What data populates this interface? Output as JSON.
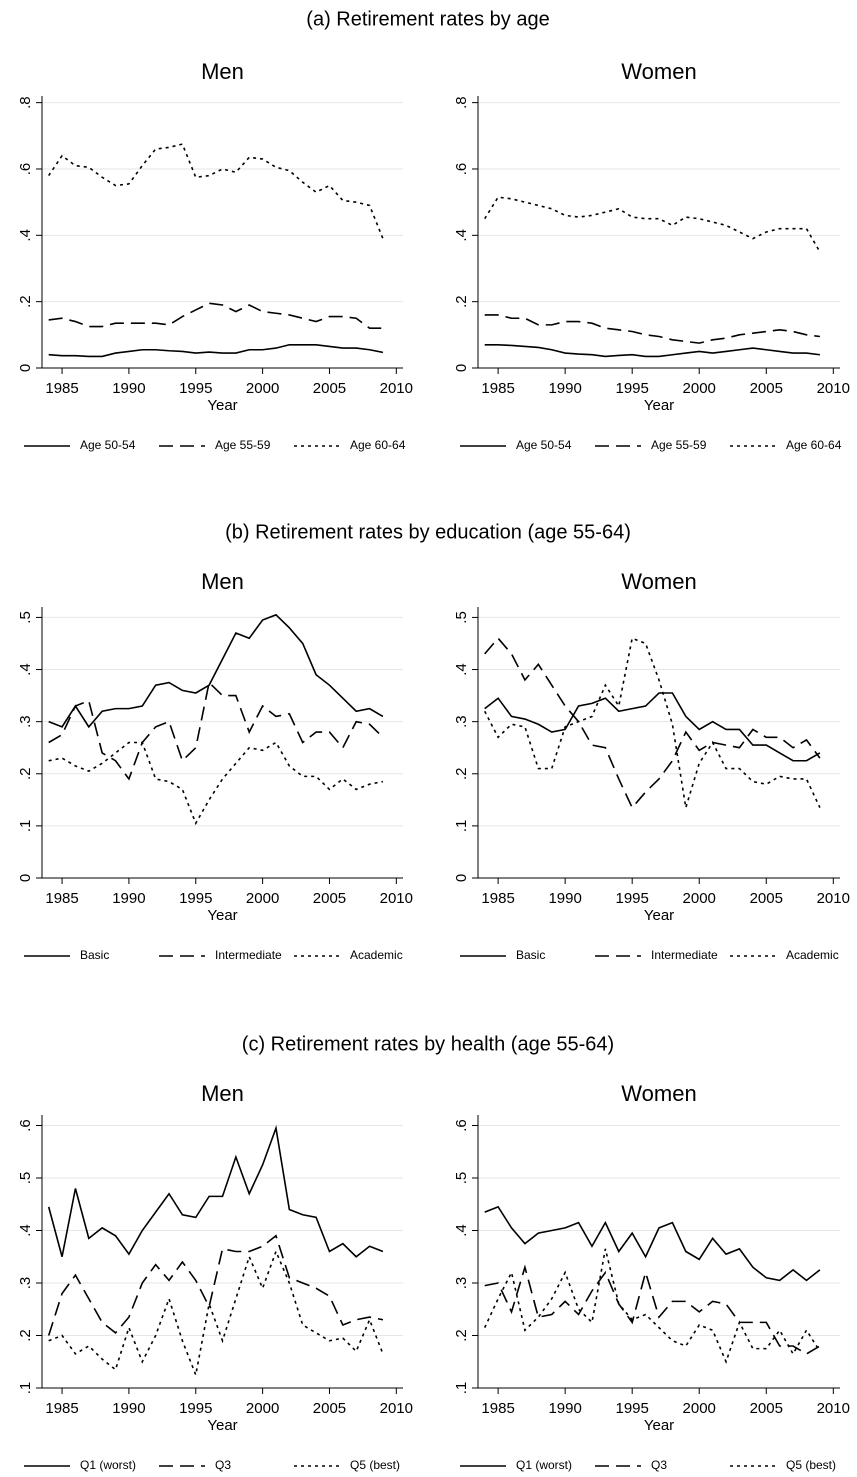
{
  "section_titles": [
    "(a) Retirement rates by age",
    "(b) Retirement rates by education (age 55-64)",
    "(c) Retirement rates by health (age 55-64)"
  ],
  "chart_data": [
    {
      "type": "line",
      "title": "Men",
      "xlabel": "Year",
      "grid": true,
      "x": [
        1984,
        1985,
        1986,
        1987,
        1988,
        1989,
        1990,
        1991,
        1992,
        1993,
        1994,
        1995,
        1996,
        1997,
        1998,
        1999,
        2000,
        2001,
        2002,
        2003,
        2004,
        2005,
        2006,
        2007,
        2008,
        2009
      ],
      "xlim": [
        1983.5,
        2010.5
      ],
      "xticks": [
        1985,
        1990,
        1995,
        2000,
        2005,
        2010
      ],
      "ylim": [
        0,
        0.82
      ],
      "yticks": [
        0,
        {
          "value": 0.2,
          "label": ".2"
        },
        {
          "value": 0.4,
          "label": ".4"
        },
        {
          "value": 0.6,
          "label": ".6"
        },
        {
          "value": 0.8,
          "label": ".8"
        }
      ],
      "series": [
        {
          "name": "Age 50-54",
          "color": "#000000",
          "style": "solid",
          "values": [
            0.04,
            0.037,
            0.037,
            0.035,
            0.035,
            0.045,
            0.05,
            0.055,
            0.055,
            0.052,
            0.05,
            0.045,
            0.048,
            0.045,
            0.045,
            0.055,
            0.055,
            0.06,
            0.07,
            0.07,
            0.07,
            0.065,
            0.06,
            0.06,
            0.055,
            0.047
          ]
        },
        {
          "name": "Age 55-59",
          "color": "#000000",
          "style": "dash",
          "values": [
            0.145,
            0.15,
            0.14,
            0.125,
            0.125,
            0.135,
            0.135,
            0.135,
            0.135,
            0.13,
            0.155,
            0.175,
            0.195,
            0.19,
            0.17,
            0.19,
            0.17,
            0.165,
            0.16,
            0.15,
            0.14,
            0.155,
            0.155,
            0.15,
            0.12,
            0.12
          ]
        },
        {
          "name": "Age 60-64",
          "color": "#000000",
          "style": "dot",
          "values": [
            0.58,
            0.64,
            0.61,
            0.605,
            0.575,
            0.55,
            0.555,
            0.61,
            0.66,
            0.665,
            0.675,
            0.575,
            0.58,
            0.6,
            0.59,
            0.635,
            0.63,
            0.605,
            0.595,
            0.56,
            0.53,
            0.55,
            0.505,
            0.5,
            0.49,
            0.39
          ]
        }
      ]
    },
    {
      "type": "line",
      "title": "Women",
      "xlabel": "Year",
      "grid": true,
      "x": [
        1984,
        1985,
        1986,
        1987,
        1988,
        1989,
        1990,
        1991,
        1992,
        1993,
        1994,
        1995,
        1996,
        1997,
        1998,
        1999,
        2000,
        2001,
        2002,
        2003,
        2004,
        2005,
        2006,
        2007,
        2008,
        2009
      ],
      "xlim": [
        1983.5,
        2010.5
      ],
      "xticks": [
        1985,
        1990,
        1995,
        2000,
        2005,
        2010
      ],
      "ylim": [
        0,
        0.82
      ],
      "yticks": [
        0,
        {
          "value": 0.2,
          "label": ".2"
        },
        {
          "value": 0.4,
          "label": ".4"
        },
        {
          "value": 0.6,
          "label": ".6"
        },
        {
          "value": 0.8,
          "label": ".8"
        }
      ],
      "series": [
        {
          "name": "Age 50-54",
          "color": "#000000",
          "style": "solid",
          "values": [
            0.07,
            0.07,
            0.068,
            0.065,
            0.062,
            0.055,
            0.045,
            0.042,
            0.04,
            0.035,
            0.038,
            0.04,
            0.035,
            0.035,
            0.04,
            0.045,
            0.05,
            0.045,
            0.05,
            0.055,
            0.06,
            0.055,
            0.05,
            0.045,
            0.045,
            0.04
          ]
        },
        {
          "name": "Age 55-59",
          "color": "#000000",
          "style": "dash",
          "values": [
            0.16,
            0.16,
            0.15,
            0.15,
            0.13,
            0.13,
            0.14,
            0.14,
            0.135,
            0.12,
            0.115,
            0.11,
            0.1,
            0.095,
            0.085,
            0.08,
            0.075,
            0.085,
            0.09,
            0.1,
            0.105,
            0.11,
            0.115,
            0.11,
            0.1,
            0.095
          ]
        },
        {
          "name": "Age 60-64",
          "color": "#000000",
          "style": "dot",
          "values": [
            0.45,
            0.515,
            0.51,
            0.5,
            0.49,
            0.48,
            0.46,
            0.455,
            0.46,
            0.47,
            0.48,
            0.455,
            0.45,
            0.45,
            0.43,
            0.455,
            0.45,
            0.44,
            0.43,
            0.41,
            0.39,
            0.41,
            0.42,
            0.42,
            0.42,
            0.35
          ]
        }
      ]
    },
    {
      "type": "line",
      "title": "Men",
      "xlabel": "Year",
      "grid": true,
      "x": [
        1984,
        1985,
        1986,
        1987,
        1988,
        1989,
        1990,
        1991,
        1992,
        1993,
        1994,
        1995,
        1996,
        1997,
        1998,
        1999,
        2000,
        2001,
        2002,
        2003,
        2004,
        2005,
        2006,
        2007,
        2008,
        2009
      ],
      "xlim": [
        1983.5,
        2010.5
      ],
      "xticks": [
        1985,
        1990,
        1995,
        2000,
        2005,
        2010
      ],
      "ylim": [
        0,
        0.52
      ],
      "yticks": [
        0,
        {
          "value": 0.1,
          "label": ".1"
        },
        {
          "value": 0.2,
          "label": ".2"
        },
        {
          "value": 0.3,
          "label": ".3"
        },
        {
          "value": 0.4,
          "label": ".4"
        },
        {
          "value": 0.5,
          "label": ".5"
        }
      ],
      "series": [
        {
          "name": "Basic",
          "color": "#000000",
          "style": "solid",
          "values": [
            0.3,
            0.29,
            0.33,
            0.29,
            0.32,
            0.325,
            0.325,
            0.33,
            0.37,
            0.375,
            0.36,
            0.355,
            0.37,
            0.42,
            0.47,
            0.46,
            0.495,
            0.505,
            0.48,
            0.45,
            0.39,
            0.37,
            0.345,
            0.32,
            0.325,
            0.31
          ]
        },
        {
          "name": "Intermediate",
          "color": "#000000",
          "style": "dash",
          "values": [
            0.26,
            0.275,
            0.33,
            0.34,
            0.24,
            0.225,
            0.19,
            0.26,
            0.29,
            0.3,
            0.225,
            0.25,
            0.375,
            0.35,
            0.35,
            0.28,
            0.33,
            0.31,
            0.315,
            0.26,
            0.28,
            0.28,
            0.25,
            0.3,
            0.295,
            0.27
          ]
        },
        {
          "name": "Academic",
          "color": "#000000",
          "style": "dot",
          "values": [
            0.225,
            0.23,
            0.215,
            0.205,
            0.22,
            0.24,
            0.26,
            0.26,
            0.19,
            0.185,
            0.17,
            0.105,
            0.15,
            0.19,
            0.22,
            0.25,
            0.245,
            0.26,
            0.215,
            0.195,
            0.195,
            0.17,
            0.19,
            0.17,
            0.18,
            0.185
          ]
        }
      ]
    },
    {
      "type": "line",
      "title": "Women",
      "xlabel": "Year",
      "grid": true,
      "x": [
        1984,
        1985,
        1986,
        1987,
        1988,
        1989,
        1990,
        1991,
        1992,
        1993,
        1994,
        1995,
        1996,
        1997,
        1998,
        1999,
        2000,
        2001,
        2002,
        2003,
        2004,
        2005,
        2006,
        2007,
        2008,
        2009
      ],
      "xlim": [
        1983.5,
        2010.5
      ],
      "xticks": [
        1985,
        1990,
        1995,
        2000,
        2005,
        2010
      ],
      "ylim": [
        0,
        0.52
      ],
      "yticks": [
        0,
        {
          "value": 0.1,
          "label": ".1"
        },
        {
          "value": 0.2,
          "label": ".2"
        },
        {
          "value": 0.3,
          "label": ".3"
        },
        {
          "value": 0.4,
          "label": ".4"
        },
        {
          "value": 0.5,
          "label": ".5"
        }
      ],
      "series": [
        {
          "name": "Basic",
          "color": "#000000",
          "style": "solid",
          "values": [
            0.325,
            0.345,
            0.31,
            0.305,
            0.295,
            0.28,
            0.285,
            0.33,
            0.335,
            0.345,
            0.32,
            0.325,
            0.33,
            0.355,
            0.355,
            0.31,
            0.285,
            0.3,
            0.285,
            0.285,
            0.255,
            0.255,
            0.24,
            0.225,
            0.225,
            0.24
          ]
        },
        {
          "name": "Intermediate",
          "color": "#000000",
          "style": "dash",
          "values": [
            0.43,
            0.46,
            0.43,
            0.38,
            0.41,
            0.37,
            0.33,
            0.3,
            0.255,
            0.25,
            0.19,
            0.135,
            0.165,
            0.19,
            0.225,
            0.28,
            0.245,
            0.26,
            0.255,
            0.25,
            0.285,
            0.27,
            0.27,
            0.25,
            0.265,
            0.23
          ]
        },
        {
          "name": "Academic",
          "color": "#000000",
          "style": "dot",
          "values": [
            0.32,
            0.27,
            0.295,
            0.29,
            0.21,
            0.21,
            0.29,
            0.3,
            0.31,
            0.37,
            0.33,
            0.46,
            0.45,
            0.38,
            0.295,
            0.135,
            0.22,
            0.26,
            0.21,
            0.21,
            0.185,
            0.18,
            0.195,
            0.19,
            0.19,
            0.135
          ]
        }
      ]
    },
    {
      "type": "line",
      "title": "Men",
      "xlabel": "Year",
      "grid": true,
      "x": [
        1984,
        1985,
        1986,
        1987,
        1988,
        1989,
        1990,
        1991,
        1992,
        1993,
        1994,
        1995,
        1996,
        1997,
        1998,
        1999,
        2000,
        2001,
        2002,
        2003,
        2004,
        2005,
        2006,
        2007,
        2008,
        2009
      ],
      "xlim": [
        1983.5,
        2010.5
      ],
      "xticks": [
        1985,
        1990,
        1995,
        2000,
        2005,
        2010
      ],
      "ylim": [
        0.1,
        0.62
      ],
      "yticks": [
        {
          "value": 0.1,
          "label": ".1"
        },
        {
          "value": 0.2,
          "label": ".2"
        },
        {
          "value": 0.3,
          "label": ".3"
        },
        {
          "value": 0.4,
          "label": ".4"
        },
        {
          "value": 0.5,
          "label": ".5"
        },
        {
          "value": 0.6,
          "label": ".6"
        }
      ],
      "series": [
        {
          "name": "Q1 (worst)",
          "color": "#000000",
          "style": "solid",
          "values": [
            0.445,
            0.35,
            0.48,
            0.385,
            0.405,
            0.39,
            0.355,
            0.4,
            0.435,
            0.47,
            0.43,
            0.425,
            0.465,
            0.465,
            0.54,
            0.47,
            0.525,
            0.595,
            0.44,
            0.43,
            0.425,
            0.36,
            0.375,
            0.35,
            0.37,
            0.36
          ]
        },
        {
          "name": "Q3",
          "color": "#000000",
          "style": "dash",
          "values": [
            0.2,
            0.28,
            0.315,
            0.27,
            0.225,
            0.205,
            0.235,
            0.3,
            0.335,
            0.305,
            0.34,
            0.305,
            0.255,
            0.365,
            0.36,
            0.36,
            0.37,
            0.39,
            0.31,
            0.3,
            0.29,
            0.275,
            0.22,
            0.23,
            0.235,
            0.23
          ]
        },
        {
          "name": "Q5 (best)",
          "color": "#000000",
          "style": "dot",
          "values": [
            0.19,
            0.2,
            0.165,
            0.18,
            0.155,
            0.135,
            0.215,
            0.15,
            0.2,
            0.27,
            0.19,
            0.125,
            0.26,
            0.19,
            0.27,
            0.35,
            0.29,
            0.36,
            0.3,
            0.22,
            0.205,
            0.19,
            0.195,
            0.17,
            0.23,
            0.165
          ]
        }
      ]
    },
    {
      "type": "line",
      "title": "Women",
      "xlabel": "Year",
      "grid": true,
      "x": [
        1984,
        1985,
        1986,
        1987,
        1988,
        1989,
        1990,
        1991,
        1992,
        1993,
        1994,
        1995,
        1996,
        1997,
        1998,
        1999,
        2000,
        2001,
        2002,
        2003,
        2004,
        2005,
        2006,
        2007,
        2008,
        2009
      ],
      "xlim": [
        1983.5,
        2010.5
      ],
      "xticks": [
        1985,
        1990,
        1995,
        2000,
        2005,
        2010
      ],
      "ylim": [
        0.1,
        0.62
      ],
      "yticks": [
        {
          "value": 0.1,
          "label": ".1"
        },
        {
          "value": 0.2,
          "label": ".2"
        },
        {
          "value": 0.3,
          "label": ".3"
        },
        {
          "value": 0.4,
          "label": ".4"
        },
        {
          "value": 0.5,
          "label": ".5"
        },
        {
          "value": 0.6,
          "label": ".6"
        }
      ],
      "series": [
        {
          "name": "Q1 (worst)",
          "color": "#000000",
          "style": "solid",
          "values": [
            0.435,
            0.445,
            0.405,
            0.375,
            0.395,
            0.4,
            0.405,
            0.415,
            0.37,
            0.415,
            0.36,
            0.395,
            0.35,
            0.405,
            0.415,
            0.36,
            0.345,
            0.385,
            0.355,
            0.365,
            0.33,
            0.31,
            0.305,
            0.325,
            0.305,
            0.325
          ]
        },
        {
          "name": "Q3",
          "color": "#000000",
          "style": "dash",
          "values": [
            0.295,
            0.3,
            0.245,
            0.33,
            0.235,
            0.24,
            0.265,
            0.24,
            0.285,
            0.32,
            0.26,
            0.225,
            0.32,
            0.235,
            0.265,
            0.265,
            0.245,
            0.265,
            0.26,
            0.225,
            0.225,
            0.225,
            0.18,
            0.18,
            0.165,
            0.18
          ]
        },
        {
          "name": "Q5 (best)",
          "color": "#000000",
          "style": "dot",
          "values": [
            0.215,
            0.27,
            0.32,
            0.21,
            0.235,
            0.27,
            0.32,
            0.25,
            0.225,
            0.365,
            0.26,
            0.23,
            0.24,
            0.215,
            0.19,
            0.18,
            0.22,
            0.21,
            0.15,
            0.225,
            0.175,
            0.175,
            0.21,
            0.165,
            0.21,
            0.17
          ]
        }
      ]
    }
  ]
}
